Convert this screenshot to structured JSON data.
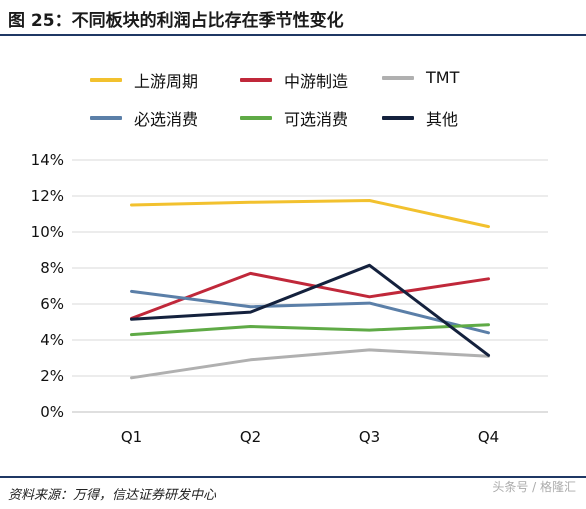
{
  "title": "图 25：不同板块的利润占比存在季节性变化",
  "source": "资料来源：万得，信达证券研发中心",
  "watermark": "头条号 / 格隆汇",
  "legend": [
    {
      "label": "上游周期",
      "color": "#f2c12e"
    },
    {
      "label": "中游制造",
      "color": "#c0283a"
    },
    {
      "label": "TMT",
      "color": "#b0b0b0"
    },
    {
      "label": "必选消费",
      "color": "#5b7fa8"
    },
    {
      "label": "可选消费",
      "color": "#5faa46"
    },
    {
      "label": "其他",
      "color": "#14213d"
    }
  ],
  "chart_data": {
    "type": "line",
    "categories": [
      "Q1",
      "Q2",
      "Q3",
      "Q4"
    ],
    "ylim": [
      0,
      14
    ],
    "yticks": [
      "0%",
      "2%",
      "4%",
      "6%",
      "8%",
      "10%",
      "12%",
      "14%"
    ],
    "grid": true,
    "legend_position": "top",
    "series": [
      {
        "name": "上游周期",
        "color": "#f2c12e",
        "values": [
          11.5,
          11.65,
          11.75,
          10.3
        ]
      },
      {
        "name": "中游制造",
        "color": "#c0283a",
        "values": [
          5.2,
          7.7,
          6.4,
          7.4
        ]
      },
      {
        "name": "TMT",
        "color": "#b0b0b0",
        "values": [
          1.9,
          2.9,
          3.45,
          3.1
        ]
      },
      {
        "name": "必选消费",
        "color": "#5b7fa8",
        "values": [
          6.7,
          5.85,
          6.05,
          4.4
        ]
      },
      {
        "name": "可选消费",
        "color": "#5faa46",
        "values": [
          4.3,
          4.75,
          4.55,
          4.85
        ]
      },
      {
        "name": "其他",
        "color": "#14213d",
        "values": [
          5.15,
          5.55,
          8.15,
          3.15
        ]
      }
    ]
  }
}
